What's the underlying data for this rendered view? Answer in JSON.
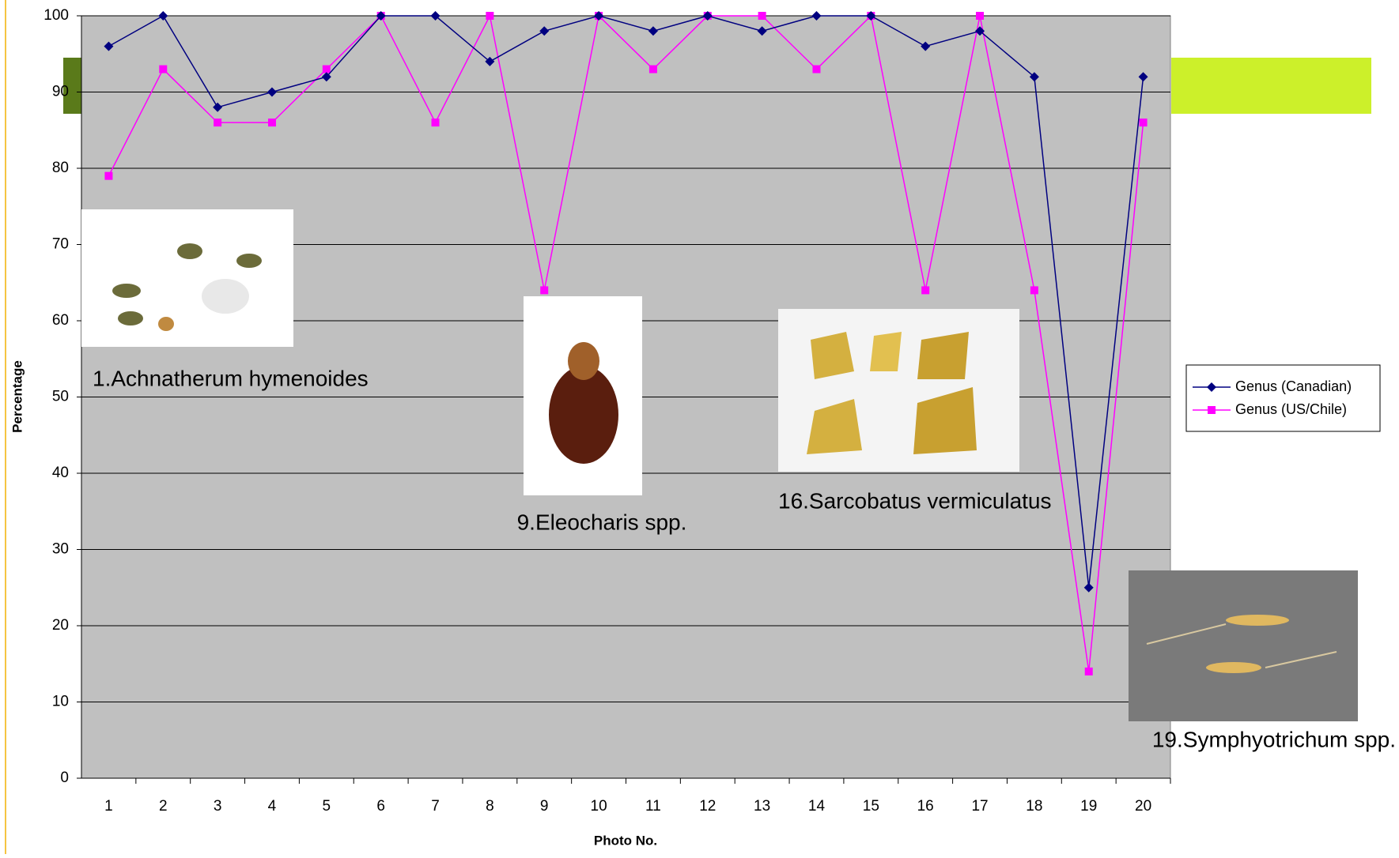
{
  "chart_data": {
    "type": "line",
    "xlabel": "Photo No.",
    "ylabel": "Percentage",
    "categories": [
      "1",
      "2",
      "3",
      "4",
      "5",
      "6",
      "7",
      "8",
      "9",
      "10",
      "11",
      "12",
      "13",
      "14",
      "15",
      "16",
      "17",
      "18",
      "19",
      "20"
    ],
    "series": [
      {
        "name": "Genus (Canadian)",
        "color": "#000080",
        "marker": "diamond",
        "values": [
          96,
          100,
          88,
          90,
          92,
          100,
          100,
          94,
          98,
          100,
          98,
          100,
          98,
          100,
          100,
          96,
          98,
          92,
          25,
          92
        ]
      },
      {
        "name": "Genus (US/Chile)",
        "color": "#ff00ff",
        "marker": "square",
        "values": [
          79,
          93,
          86,
          86,
          93,
          100,
          86,
          100,
          64,
          100,
          93,
          100,
          100,
          93,
          100,
          64,
          100,
          64,
          14,
          86
        ]
      }
    ],
    "ylim": [
      0,
      100
    ],
    "yticks": [
      0,
      10,
      20,
      30,
      40,
      50,
      60,
      70,
      80,
      90,
      100
    ],
    "grid": true,
    "legend": "right",
    "annotations": [
      "1.Achnatherum hymenoides",
      "9.Eleocharis spp.",
      "16.Sarcobatus vermiculatus",
      "19.Symphyotrichum spp."
    ]
  }
}
